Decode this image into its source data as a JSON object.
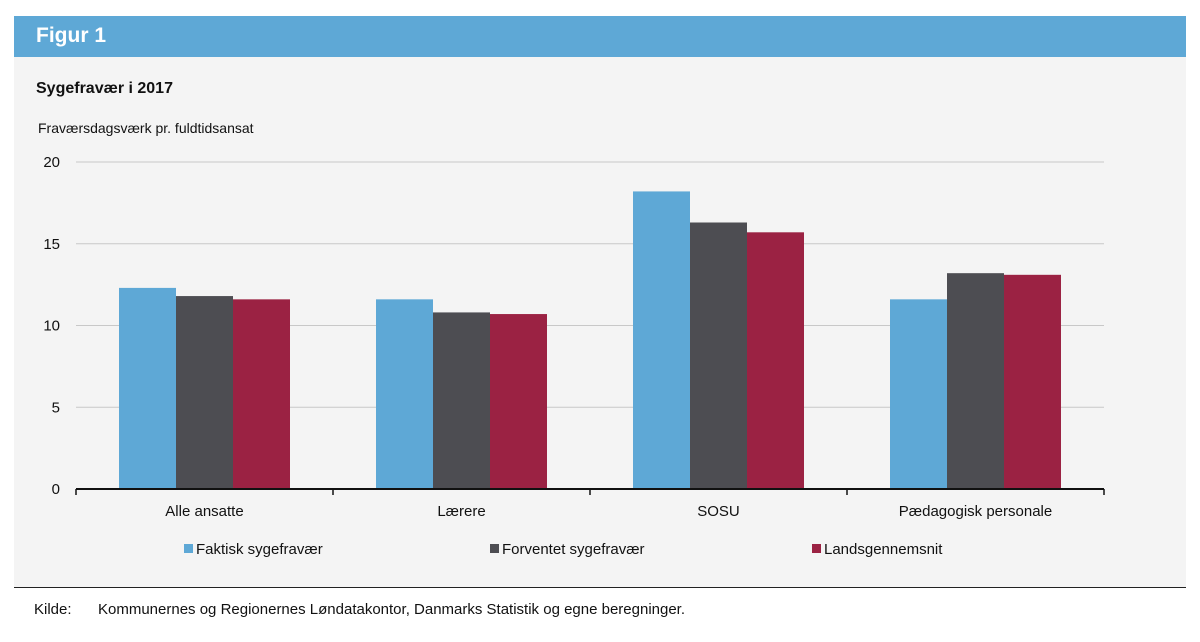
{
  "header": {
    "title": "Figur 1"
  },
  "source": {
    "label": "Kilde:",
    "text": "Kommunernes og Regionernes Løndatakontor, Danmarks Statistik og egne beregninger."
  },
  "colors": {
    "header_bg": "#5ea8d6",
    "panel_bg": "#f4f4f4"
  },
  "chart_data": {
    "type": "bar",
    "title": "Sygefravær i 2017",
    "ylabel": "Fraværsdagsværk pr. fuldtidsansat",
    "xlabel": "",
    "ylim": [
      0,
      20
    ],
    "yticks": [
      0,
      5,
      10,
      15,
      20
    ],
    "grid": true,
    "legend_position": "bottom",
    "categories": [
      "Alle ansatte",
      "Lærere",
      "SOSU",
      "Pædagogisk personale"
    ],
    "series": [
      {
        "name": "Faktisk sygefravær",
        "color": "#5ea8d6",
        "values": [
          12.3,
          11.6,
          18.2,
          11.6
        ]
      },
      {
        "name": "Forventet sygefravær",
        "color": "#4d4d52",
        "values": [
          11.8,
          10.8,
          16.3,
          13.2
        ]
      },
      {
        "name": "Landsgennemsnit",
        "color": "#9b2243",
        "values": [
          11.6,
          10.7,
          15.7,
          13.1
        ]
      }
    ]
  }
}
